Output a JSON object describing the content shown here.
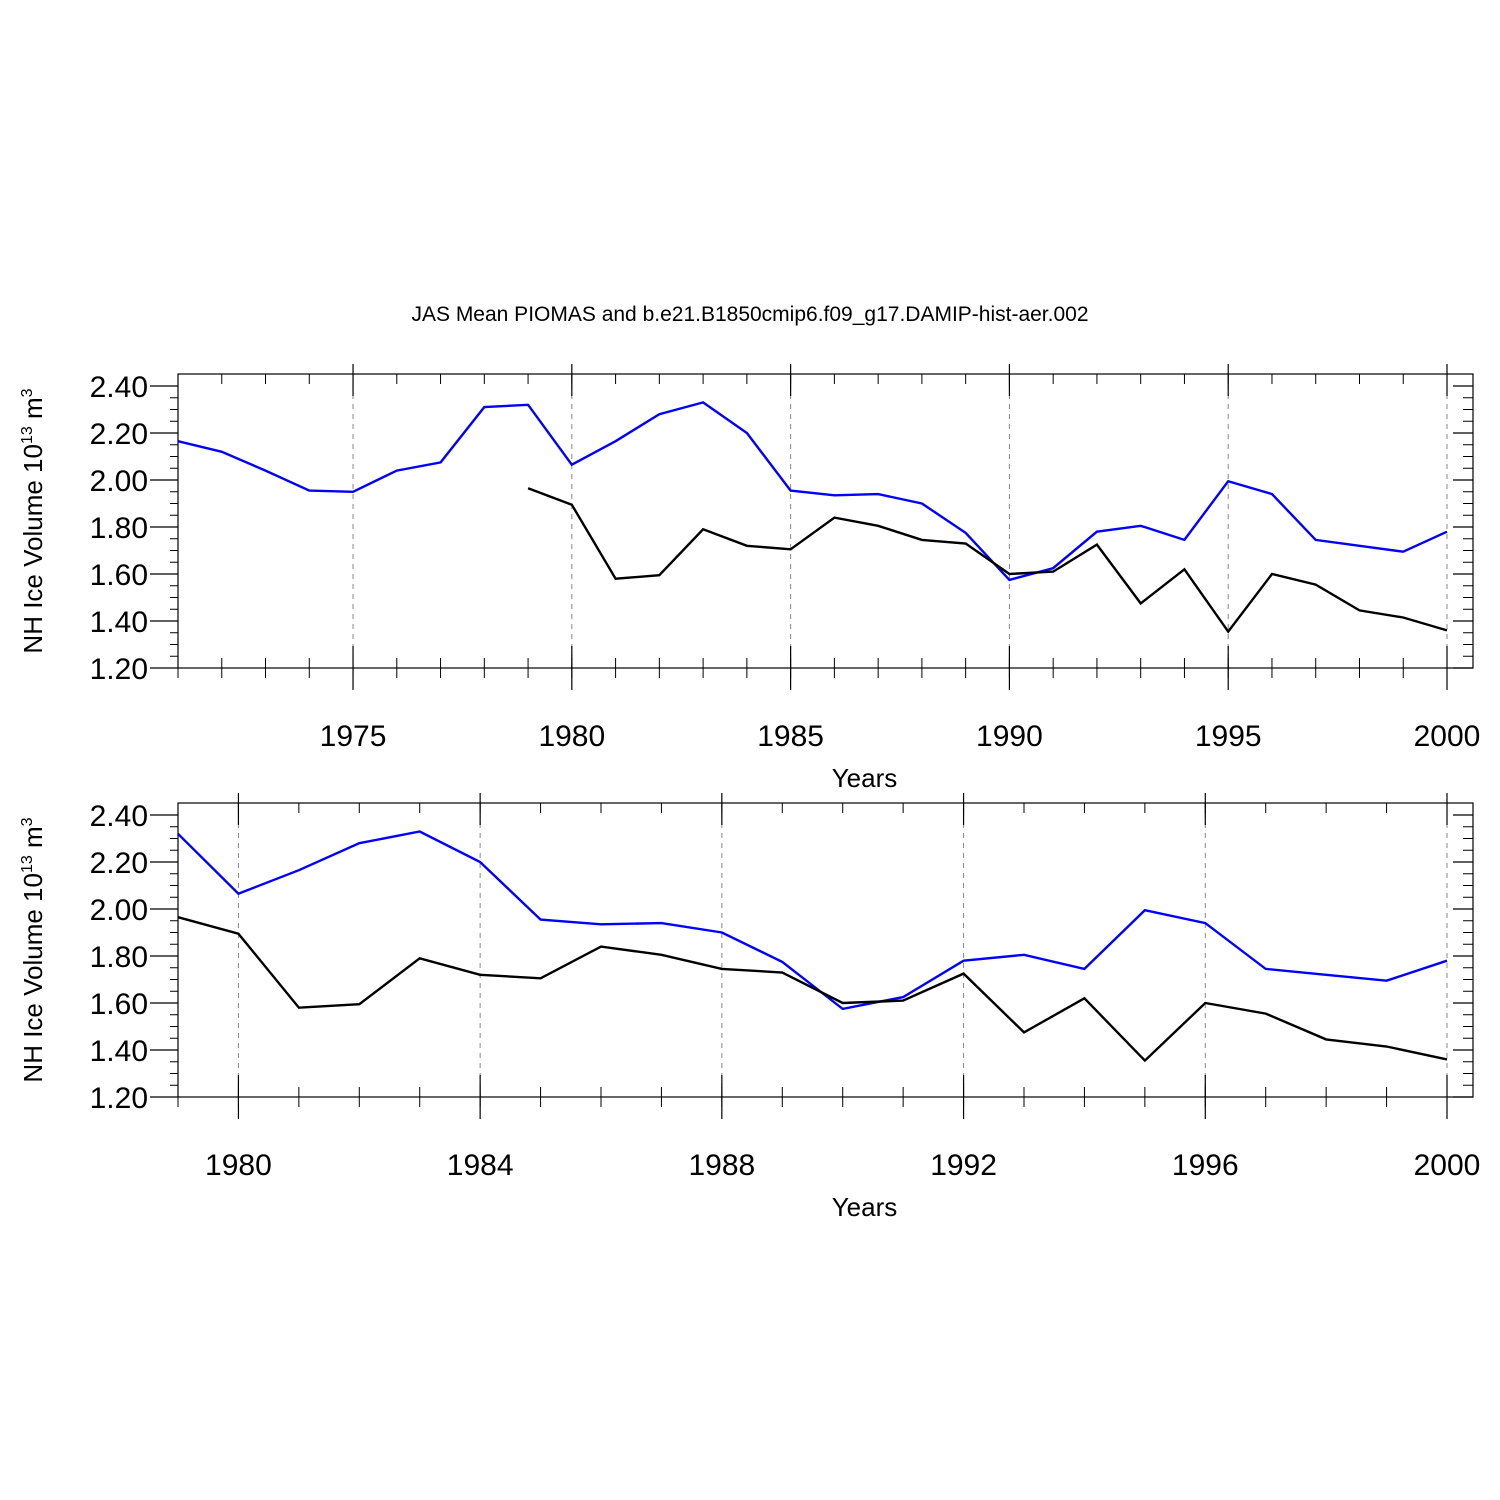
{
  "chart_data": [
    {
      "type": "line",
      "title": "JAS Mean PIOMAS and b.e21.B1850cmip6.f09_g17.DAMIP-hist-aer.002",
      "xlabel": "Years",
      "ylabel": {
        "text": "NH Ice Volume 10",
        "exp": "13",
        "unit": " m",
        "unit_exp": "3"
      },
      "xlim": [
        1971,
        2000
      ],
      "ylim": [
        1.2,
        2.4
      ],
      "xticks": [
        1975,
        1980,
        1985,
        1990,
        1995,
        2000
      ],
      "xtick_labels": [
        "1975",
        "1980",
        "1985",
        "1990",
        "1995",
        "2000"
      ],
      "yticks": [
        1.2,
        1.4,
        1.6,
        1.8,
        2.0,
        2.2,
        2.4
      ],
      "ytick_labels": [
        "1.20",
        "1.40",
        "1.60",
        "1.80",
        "2.00",
        "2.20",
        "2.40"
      ],
      "series": [
        {
          "name": "b.e21.B1850cmip6.f09_g17.DAMIP-hist-aer.002",
          "color": "#0000ff",
          "x": [
            1971,
            1972,
            1973,
            1974,
            1975,
            1976,
            1977,
            1978,
            1979,
            1980,
            1981,
            1982,
            1983,
            1984,
            1985,
            1986,
            1987,
            1988,
            1989,
            1990,
            1991,
            1992,
            1993,
            1994,
            1995,
            1996,
            1997,
            1998,
            1999,
            2000
          ],
          "values": [
            2.165,
            2.12,
            2.04,
            1.955,
            1.95,
            2.04,
            2.075,
            2.31,
            2.32,
            2.065,
            2.165,
            2.28,
            2.33,
            2.2,
            1.955,
            1.935,
            1.94,
            1.9,
            1.775,
            1.575,
            1.625,
            1.78,
            1.805,
            1.745,
            1.995,
            1.94,
            1.745,
            1.72,
            1.695,
            1.78
          ]
        },
        {
          "name": "PIOMAS",
          "color": "#000000",
          "x": [
            1979,
            1980,
            1981,
            1982,
            1983,
            1984,
            1985,
            1986,
            1987,
            1988,
            1989,
            1990,
            1991,
            1992,
            1993,
            1994,
            1995,
            1996,
            1997,
            1998,
            1999,
            2000
          ],
          "values": [
            1.965,
            1.895,
            1.58,
            1.595,
            1.79,
            1.72,
            1.705,
            1.84,
            1.805,
            1.745,
            1.73,
            1.6,
            1.61,
            1.725,
            1.475,
            1.62,
            1.355,
            1.6,
            1.555,
            1.445,
            1.415,
            1.36
          ]
        }
      ]
    },
    {
      "type": "line",
      "xlabel": "Years",
      "ylabel": {
        "text": "NH Ice Volume 10",
        "exp": "13",
        "unit": " m",
        "unit_exp": "3"
      },
      "xlim": [
        1979,
        2000
      ],
      "ylim": [
        1.2,
        2.4
      ],
      "xticks": [
        1980,
        1984,
        1988,
        1992,
        1996,
        2000
      ],
      "xtick_labels": [
        "1980",
        "1984",
        "1988",
        "1992",
        "1996",
        "2000"
      ],
      "yticks": [
        1.2,
        1.4,
        1.6,
        1.8,
        2.0,
        2.2,
        2.4
      ],
      "ytick_labels": [
        "1.20",
        "1.40",
        "1.60",
        "1.80",
        "2.00",
        "2.20",
        "2.40"
      ],
      "series": [
        {
          "name": "b.e21.B1850cmip6.f09_g17.DAMIP-hist-aer.002",
          "color": "#0000ff",
          "x": [
            1979,
            1980,
            1981,
            1982,
            1983,
            1984,
            1985,
            1986,
            1987,
            1988,
            1989,
            1990,
            1991,
            1992,
            1993,
            1994,
            1995,
            1996,
            1997,
            1998,
            1999,
            2000
          ],
          "values": [
            2.32,
            2.065,
            2.165,
            2.28,
            2.33,
            2.2,
            1.955,
            1.935,
            1.94,
            1.9,
            1.775,
            1.575,
            1.625,
            1.78,
            1.805,
            1.745,
            1.995,
            1.94,
            1.745,
            1.72,
            1.695,
            1.78
          ]
        },
        {
          "name": "PIOMAS",
          "color": "#000000",
          "x": [
            1979,
            1980,
            1981,
            1982,
            1983,
            1984,
            1985,
            1986,
            1987,
            1988,
            1989,
            1990,
            1991,
            1992,
            1993,
            1994,
            1995,
            1996,
            1997,
            1998,
            1999,
            2000
          ],
          "values": [
            1.965,
            1.895,
            1.58,
            1.595,
            1.79,
            1.72,
            1.705,
            1.84,
            1.805,
            1.745,
            1.73,
            1.6,
            1.61,
            1.725,
            1.475,
            1.62,
            1.355,
            1.6,
            1.555,
            1.445,
            1.415,
            1.36
          ]
        }
      ]
    }
  ]
}
